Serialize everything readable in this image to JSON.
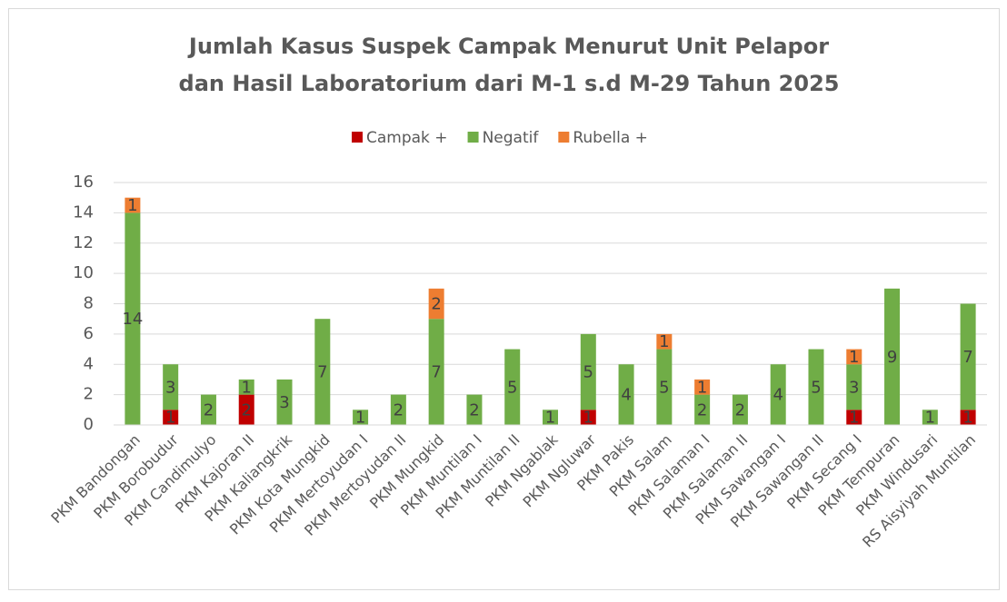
{
  "chart_data": {
    "type": "stacked_bar",
    "title": [
      "Jumlah Kasus Suspek Campak Menurut Unit Pelapor",
      "dan Hasil Laboratorium dari M-1 s.d M-29 Tahun 2025"
    ],
    "categories": [
      "PKM Bandongan",
      "PKM Borobudur",
      "PKM Candimulyo",
      "PKM Kajoran II",
      "PKM Kaliangkrik",
      "PKM Kota Mungkid",
      "PKM Mertoyudan I",
      "PKM Mertoyudan II",
      "PKM Mungkid",
      "PKM Muntilan I",
      "PKM Muntilan II",
      "PKM Ngablak",
      "PKM Ngluwar",
      "PKM Pakis",
      "PKM Salam",
      "PKM Salaman I",
      "PKM Salaman II",
      "PKM Sawangan I",
      "PKM Sawangan II",
      "PKM Secang I",
      "PKM Tempuran",
      "PKM Windusari",
      "RS Aisyiyah Muntilan"
    ],
    "series": [
      {
        "name": "Campak +",
        "color": "#c00000",
        "values": [
          null,
          1,
          null,
          2,
          null,
          null,
          null,
          null,
          null,
          null,
          null,
          null,
          1,
          null,
          null,
          null,
          null,
          null,
          null,
          1,
          null,
          null,
          1
        ]
      },
      {
        "name": "Negatif",
        "color": "#70ad47",
        "values": [
          14,
          3,
          2,
          1,
          3,
          7,
          1,
          2,
          7,
          2,
          5,
          1,
          5,
          4,
          5,
          2,
          2,
          4,
          5,
          3,
          9,
          1,
          7
        ]
      },
      {
        "name": "Rubella +",
        "color": "#ed7d31",
        "values": [
          1,
          null,
          null,
          null,
          null,
          null,
          null,
          null,
          2,
          null,
          null,
          null,
          null,
          null,
          1,
          1,
          null,
          null,
          null,
          1,
          null,
          null,
          null
        ]
      }
    ],
    "ylim": [
      0,
      16
    ],
    "yticks": [
      0,
      2,
      4,
      6,
      8,
      10,
      12,
      14,
      16
    ],
    "grid": true,
    "legend": "top"
  }
}
